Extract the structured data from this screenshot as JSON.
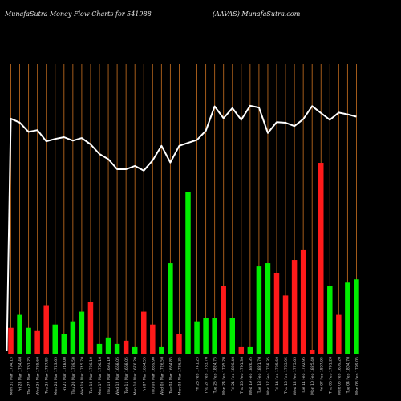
{
  "header": {
    "left": "MunafaSutra  Money Flow  Charts for 541988",
    "right": "(AAVAS) MunafaSutra.com"
  },
  "chart_data": {
    "type": "bar",
    "title": "MunafaSutra  Money Flow  Charts for 541988",
    "subtitle": "(AAVAS) MunafaSutra.com",
    "xlabel": "",
    "ylabel": "",
    "grid": true,
    "legend": "none",
    "colors": {
      "up": "#00ee00",
      "down": "#ff1a1a",
      "grid": "#b5651d",
      "line": "#ffffff",
      "background": "#000000"
    },
    "categories": [
      "Mon 31 Mar 1794.15",
      "Fri 28 Mar 1784.40",
      "Thu 27 Mar 1761.25",
      "Wed 26 Mar 1765.60",
      "Tue 25 Mar 1737.85",
      "Mon 24 Mar 1743.65",
      "Fri 21 Mar 1748.00",
      "Thu 20 Mar 1739.50",
      "Wed 19 Mar 1745.70",
      "Tue 18 Mar 1730.10",
      "Mon 17 Mar 1706.10",
      "Thu 13 Mar 1693.10",
      "Wed 12 Mar 1668.05",
      "Tue 11 Mar 1668.05",
      "Mon 10 Mar 1676.20",
      "Fri 07 Mar 1664.55",
      "Thu 06 Mar 1689.90",
      "Wed 05 Mar 1726.50",
      "Tue 04 Mar 1684.85",
      "Mon 03 Mar 1726.35",
      "",
      "Fri 28 Feb 1741.25",
      "Thu 27 Feb 1763.70",
      "Tue 25 Feb 1824.75",
      "Mon 24 Feb 1795.20",
      "Fri 21 Feb 1820.40",
      "Thu 20 Feb 1791.30",
      "Wed 19 Feb 1826.35",
      "Tue 18 Feb 1821.70",
      "Mon 17 Feb 1758.35",
      "Fri 14 Feb 1785.60",
      "Thu 13 Feb 1783.95",
      "Wed 12 Feb 1775.65",
      "Tue 11 Feb 1792.95",
      "Mon 10 Feb 1825.40",
      "Fri 07 Feb 1807.95",
      "Thu 06 Feb 1791.20",
      "Wed 05 Feb 1809.20",
      "Tue 04 Feb 1804.70",
      "Mon 03 Feb 1799.05"
    ],
    "money_flow": {
      "direction": [
        "down",
        "up",
        "up",
        "down",
        "down",
        "up",
        "up",
        "up",
        "up",
        "down",
        "up",
        "up",
        "up",
        "down",
        "up",
        "down",
        "down",
        "up",
        "up",
        "down",
        "up",
        "up",
        "up",
        "up",
        "down",
        "up",
        "down",
        "up",
        "up",
        "up",
        "down",
        "down",
        "down",
        "down",
        "down",
        "down",
        "up",
        "down",
        "up",
        "up"
      ],
      "values": [
        8,
        12,
        8,
        7,
        15,
        9,
        6,
        10,
        13,
        16,
        3,
        5,
        3,
        4,
        2,
        13,
        9,
        2,
        28,
        6,
        50,
        10,
        11,
        11,
        21,
        11,
        2,
        2,
        27,
        28,
        25,
        18,
        29,
        32,
        1,
        59,
        21,
        12,
        22,
        23
      ]
    },
    "price_line": {
      "name": "Price",
      "values": [
        1794.15,
        1784.4,
        1761.25,
        1765.6,
        1737.85,
        1743.65,
        1748.0,
        1739.5,
        1745.7,
        1730.1,
        1706.1,
        1693.1,
        1668.05,
        1668.05,
        1676.2,
        1664.55,
        1689.9,
        1726.5,
        1684.85,
        1726.35,
        1733.8,
        1741.25,
        1763.7,
        1824.75,
        1795.2,
        1820.4,
        1791.3,
        1826.35,
        1821.7,
        1758.35,
        1785.6,
        1783.95,
        1775.65,
        1792.95,
        1825.4,
        1807.95,
        1791.2,
        1809.2,
        1804.7,
        1799.05
      ]
    }
  }
}
